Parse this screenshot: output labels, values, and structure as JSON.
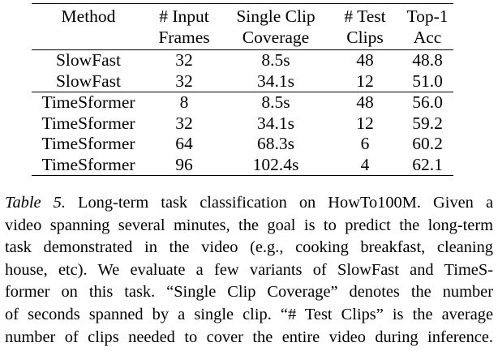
{
  "table": {
    "headers": [
      [
        "Method"
      ],
      [
        "# Input",
        "Frames"
      ],
      [
        "Single Clip",
        "Coverage"
      ],
      [
        "# Test",
        "Clips"
      ],
      [
        "Top-1",
        "Acc"
      ]
    ],
    "rows": [
      {
        "method": "SlowFast",
        "frames": "32",
        "coverage": "8.5s",
        "clips": "48",
        "acc": "48.8"
      },
      {
        "method": "SlowFast",
        "frames": "32",
        "coverage": "34.1s",
        "clips": "12",
        "acc": "51.0"
      },
      {
        "method": "TimeSformer",
        "frames": "8",
        "coverage": "8.5s",
        "clips": "48",
        "acc": "56.0"
      },
      {
        "method": "TimeSformer",
        "frames": "32",
        "coverage": "34.1s",
        "clips": "12",
        "acc": "59.2"
      },
      {
        "method": "TimeSformer",
        "frames": "64",
        "coverage": "68.3s",
        "clips": "6",
        "acc": "60.2"
      },
      {
        "method": "TimeSformer",
        "frames": "96",
        "coverage": "102.4s",
        "clips": "4",
        "acc": "62.1"
      }
    ]
  },
  "caption": {
    "label": "Table 5.",
    "lines": [
      "Long-term task classification on HowTo100M. Given a",
      "video spanning several minutes, the goal is to predict the long-term",
      "task demonstrated in the video (e.g., cooking breakfast, cleaning",
      "house, etc). We evaluate a few variants of SlowFast and TimeS-",
      "former on this task. “Single Clip Coverage” denotes the number",
      "of seconds spanned by a single clip. “# Test Clips” is the average",
      "number of clips needed to cover the entire video during inference."
    ]
  }
}
